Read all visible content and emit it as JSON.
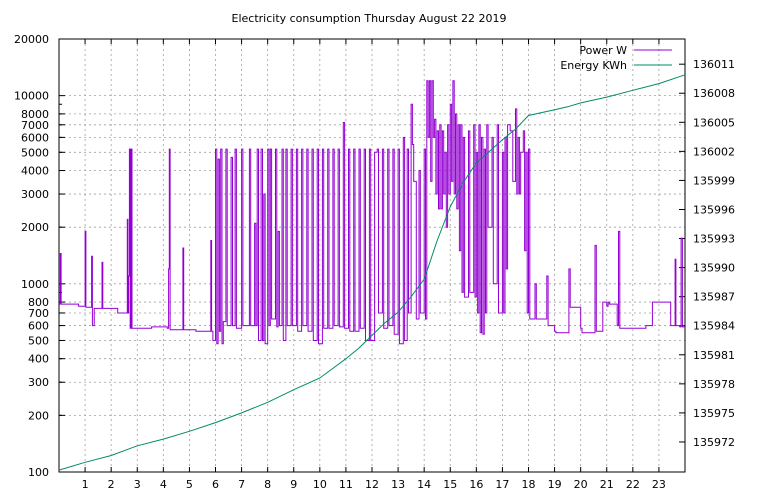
{
  "chart_data": {
    "type": "line",
    "title": "Electricity consumption Thursday August 22 2019",
    "x": {
      "range": [
        0,
        24
      ],
      "ticks": [
        1,
        2,
        3,
        4,
        5,
        6,
        7,
        8,
        9,
        10,
        11,
        12,
        13,
        14,
        15,
        16,
        17,
        18,
        19,
        20,
        21,
        22,
        23
      ]
    },
    "y_left": {
      "scale": "log",
      "range": [
        100,
        20000
      ],
      "ticks": [
        100,
        200,
        300,
        400,
        500,
        600,
        700,
        800,
        1000,
        2000,
        3000,
        4000,
        5000,
        6000,
        7000,
        8000,
        10000,
        20000
      ]
    },
    "y_right": {
      "scale": "linear",
      "range": [
        135968.9,
        136013.6
      ],
      "ticks": [
        135972,
        135975,
        135978,
        135981,
        135984,
        135987,
        135990,
        135993,
        135996,
        135999,
        136002,
        136005,
        136008,
        136011
      ]
    },
    "grid": true,
    "legend_position": "top-right",
    "series": [
      {
        "name": "Power W",
        "axis": "left",
        "color": "#9400d3",
        "points": [
          [
            0.0,
            780
          ],
          [
            0.05,
            1450
          ],
          [
            0.08,
            780
          ],
          [
            0.7,
            780
          ],
          [
            0.75,
            760
          ],
          [
            0.95,
            760
          ],
          [
            1.0,
            1900
          ],
          [
            1.03,
            750
          ],
          [
            1.2,
            750
          ],
          [
            1.25,
            1400
          ],
          [
            1.28,
            600
          ],
          [
            1.33,
            600
          ],
          [
            1.35,
            740
          ],
          [
            1.6,
            740
          ],
          [
            1.65,
            1300
          ],
          [
            1.68,
            740
          ],
          [
            2.2,
            740
          ],
          [
            2.25,
            700
          ],
          [
            2.6,
            700
          ],
          [
            2.62,
            2200
          ],
          [
            2.64,
            700
          ],
          [
            2.67,
            1100
          ],
          [
            2.7,
            5200
          ],
          [
            2.73,
            580
          ],
          [
            2.76,
            5200
          ],
          [
            2.8,
            580
          ],
          [
            3.0,
            580
          ],
          [
            3.5,
            580
          ],
          [
            3.55,
            590
          ],
          [
            4.1,
            590
          ],
          [
            4.15,
            580
          ],
          [
            4.2,
            1200
          ],
          [
            4.23,
            5200
          ],
          [
            4.26,
            570
          ],
          [
            4.5,
            570
          ],
          [
            4.7,
            570
          ],
          [
            4.75,
            1550
          ],
          [
            4.78,
            570
          ],
          [
            5.2,
            570
          ],
          [
            5.25,
            560
          ],
          [
            5.8,
            560
          ],
          [
            5.82,
            1700
          ],
          [
            5.85,
            560
          ],
          [
            5.9,
            500
          ],
          [
            6.0,
            5200
          ],
          [
            6.05,
            480
          ],
          [
            6.1,
            4600
          ],
          [
            6.15,
            560
          ],
          [
            6.2,
            5200
          ],
          [
            6.25,
            480
          ],
          [
            6.3,
            630
          ],
          [
            6.4,
            5200
          ],
          [
            6.45,
            600
          ],
          [
            6.6,
            4700
          ],
          [
            6.65,
            600
          ],
          [
            6.75,
            5200
          ],
          [
            6.8,
            580
          ],
          [
            7.0,
            5200
          ],
          [
            7.05,
            600
          ],
          [
            7.3,
            5200
          ],
          [
            7.35,
            600
          ],
          [
            7.5,
            2100
          ],
          [
            7.55,
            600
          ],
          [
            7.6,
            5200
          ],
          [
            7.65,
            500
          ],
          [
            7.75,
            5200
          ],
          [
            7.8,
            500
          ],
          [
            7.85,
            3000
          ],
          [
            7.9,
            480
          ],
          [
            8.0,
            5200
          ],
          [
            8.05,
            600
          ],
          [
            8.1,
            5200
          ],
          [
            8.15,
            650
          ],
          [
            8.3,
            5200
          ],
          [
            8.35,
            590
          ],
          [
            8.4,
            1900
          ],
          [
            8.45,
            600
          ],
          [
            8.55,
            5200
          ],
          [
            8.6,
            500
          ],
          [
            8.7,
            5200
          ],
          [
            8.75,
            600
          ],
          [
            8.9,
            5200
          ],
          [
            8.95,
            600
          ],
          [
            9.1,
            5200
          ],
          [
            9.15,
            560
          ],
          [
            9.3,
            5200
          ],
          [
            9.35,
            600
          ],
          [
            9.5,
            5200
          ],
          [
            9.55,
            560
          ],
          [
            9.7,
            5200
          ],
          [
            9.75,
            500
          ],
          [
            9.9,
            5200
          ],
          [
            9.95,
            480
          ],
          [
            10.1,
            5200
          ],
          [
            10.15,
            580
          ],
          [
            10.3,
            5200
          ],
          [
            10.35,
            580
          ],
          [
            10.5,
            5200
          ],
          [
            10.55,
            600
          ],
          [
            10.7,
            5200
          ],
          [
            10.75,
            590
          ],
          [
            10.9,
            7200
          ],
          [
            10.95,
            580
          ],
          [
            11.1,
            5200
          ],
          [
            11.15,
            560
          ],
          [
            11.3,
            5200
          ],
          [
            11.35,
            560
          ],
          [
            11.5,
            5200
          ],
          [
            11.55,
            580
          ],
          [
            11.7,
            5200
          ],
          [
            11.75,
            500
          ],
          [
            11.9,
            5200
          ],
          [
            11.95,
            500
          ],
          [
            12.1,
            5000
          ],
          [
            12.2,
            5200
          ],
          [
            12.25,
            700
          ],
          [
            12.4,
            5200
          ],
          [
            12.45,
            580
          ],
          [
            12.6,
            5200
          ],
          [
            12.65,
            600
          ],
          [
            12.8,
            5200
          ],
          [
            12.85,
            540
          ],
          [
            13.0,
            5200
          ],
          [
            13.05,
            480
          ],
          [
            13.2,
            6000
          ],
          [
            13.25,
            500
          ],
          [
            13.35,
            5200
          ],
          [
            13.4,
            700
          ],
          [
            13.5,
            9000
          ],
          [
            13.55,
            5500
          ],
          [
            13.6,
            3500
          ],
          [
            13.7,
            650
          ],
          [
            13.8,
            4000
          ],
          [
            13.85,
            700
          ],
          [
            14.0,
            5200
          ],
          [
            14.05,
            650
          ],
          [
            14.1,
            12000
          ],
          [
            14.15,
            6000
          ],
          [
            14.2,
            12000
          ],
          [
            14.25,
            3500
          ],
          [
            14.3,
            12000
          ],
          [
            14.35,
            6000
          ],
          [
            14.4,
            7500
          ],
          [
            14.45,
            3000
          ],
          [
            14.5,
            6500
          ],
          [
            14.55,
            2500
          ],
          [
            14.6,
            7000
          ],
          [
            14.65,
            2500
          ],
          [
            14.7,
            6500
          ],
          [
            14.75,
            3000
          ],
          [
            14.8,
            5000
          ],
          [
            14.85,
            2000
          ],
          [
            14.9,
            7000
          ],
          [
            14.95,
            3000
          ],
          [
            15.0,
            9000
          ],
          [
            15.05,
            3500
          ],
          [
            15.1,
            12000
          ],
          [
            15.15,
            3000
          ],
          [
            15.2,
            8000
          ],
          [
            15.25,
            2500
          ],
          [
            15.3,
            7000
          ],
          [
            15.35,
            1500
          ],
          [
            15.4,
            7000
          ],
          [
            15.45,
            900
          ],
          [
            15.5,
            6000
          ],
          [
            15.55,
            850
          ],
          [
            15.7,
            6500
          ],
          [
            15.75,
            900
          ],
          [
            15.9,
            7000
          ],
          [
            15.95,
            850
          ],
          [
            16.0,
            5000
          ],
          [
            16.05,
            700
          ],
          [
            16.1,
            7000
          ],
          [
            16.15,
            550
          ],
          [
            16.2,
            6000
          ],
          [
            16.25,
            540
          ],
          [
            16.3,
            5200
          ],
          [
            16.35,
            700
          ],
          [
            16.4,
            7000
          ],
          [
            16.45,
            2000
          ],
          [
            16.6,
            6000
          ],
          [
            16.65,
            1000
          ],
          [
            16.8,
            7000
          ],
          [
            16.85,
            700
          ],
          [
            17.0,
            5000
          ],
          [
            17.05,
            700
          ],
          [
            17.1,
            6000
          ],
          [
            17.15,
            1200
          ],
          [
            17.2,
            7000
          ],
          [
            17.3,
            6500
          ],
          [
            17.4,
            3500
          ],
          [
            17.5,
            8500
          ],
          [
            17.55,
            3000
          ],
          [
            17.6,
            6000
          ],
          [
            17.65,
            3000
          ],
          [
            17.7,
            5000
          ],
          [
            17.8,
            6500
          ],
          [
            17.85,
            1500
          ],
          [
            17.9,
            5000
          ],
          [
            17.95,
            700
          ],
          [
            18.0,
            5200
          ],
          [
            18.05,
            650
          ],
          [
            18.2,
            650
          ],
          [
            18.25,
            1000
          ],
          [
            18.3,
            650
          ],
          [
            18.65,
            650
          ],
          [
            18.7,
            1100
          ],
          [
            18.75,
            600
          ],
          [
            19.0,
            560
          ],
          [
            19.05,
            550
          ],
          [
            19.5,
            550
          ],
          [
            19.55,
            1200
          ],
          [
            19.6,
            750
          ],
          [
            19.8,
            750
          ],
          [
            20.0,
            580
          ],
          [
            20.05,
            550
          ],
          [
            20.5,
            550
          ],
          [
            20.55,
            1600
          ],
          [
            20.6,
            560
          ],
          [
            20.8,
            560
          ],
          [
            20.85,
            800
          ],
          [
            21.0,
            760
          ],
          [
            21.05,
            800
          ],
          [
            21.1,
            780
          ],
          [
            21.3,
            780
          ],
          [
            21.4,
            600
          ],
          [
            21.45,
            1900
          ],
          [
            21.5,
            580
          ],
          [
            22.4,
            580
          ],
          [
            22.45,
            580
          ],
          [
            22.5,
            600
          ],
          [
            22.75,
            800
          ],
          [
            23.0,
            800
          ],
          [
            23.4,
            800
          ],
          [
            23.45,
            600
          ],
          [
            23.6,
            600
          ],
          [
            23.62,
            1350
          ],
          [
            23.65,
            600
          ],
          [
            23.8,
            590
          ],
          [
            23.85,
            1750
          ],
          [
            23.9,
            590
          ],
          [
            24.0,
            590
          ]
        ]
      },
      {
        "name": "Energy KWh",
        "axis": "right",
        "color": "#008b6a",
        "points": [
          [
            0.0,
            135969.1
          ],
          [
            1.0,
            135969.9
          ],
          [
            2.0,
            135970.6
          ],
          [
            3.0,
            135971.6
          ],
          [
            4.0,
            135972.3
          ],
          [
            5.0,
            135973.1
          ],
          [
            6.0,
            135974.0
          ],
          [
            7.0,
            135975.0
          ],
          [
            8.0,
            135976.1
          ],
          [
            9.0,
            135977.4
          ],
          [
            10.0,
            135978.6
          ],
          [
            10.5,
            135979.6
          ],
          [
            11.0,
            135980.6
          ],
          [
            11.5,
            135981.7
          ],
          [
            12.0,
            135983.0
          ],
          [
            12.5,
            135984.3
          ],
          [
            13.0,
            135985.4
          ],
          [
            13.5,
            135987.0
          ],
          [
            14.0,
            135988.8
          ],
          [
            14.5,
            135992.8
          ],
          [
            15.0,
            135996.3
          ],
          [
            15.5,
            135998.8
          ],
          [
            16.0,
            136000.8
          ],
          [
            16.5,
            136002.0
          ],
          [
            17.0,
            136003.2
          ],
          [
            17.5,
            136004.3
          ],
          [
            18.0,
            136005.7
          ],
          [
            18.5,
            136006.0
          ],
          [
            19.0,
            136006.3
          ],
          [
            19.5,
            136006.6
          ],
          [
            20.0,
            136007.0
          ],
          [
            21.0,
            136007.6
          ],
          [
            22.0,
            136008.3
          ],
          [
            23.0,
            136009.0
          ],
          [
            24.0,
            136009.9
          ]
        ]
      }
    ]
  }
}
